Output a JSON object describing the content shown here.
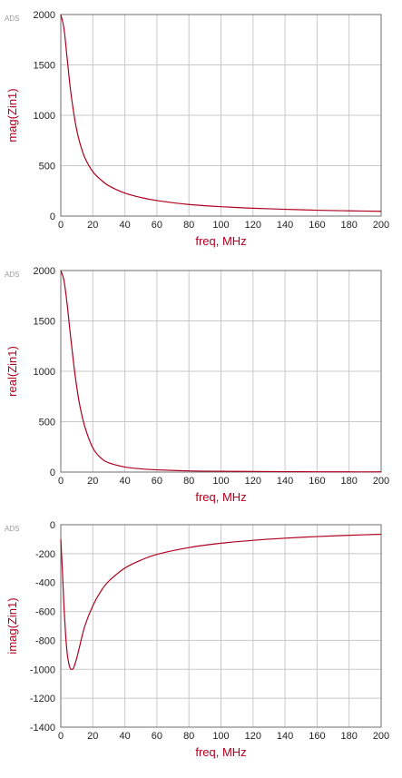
{
  "chart_data": [
    {
      "type": "line",
      "watermark": "ADS",
      "xlabel": "freq, MHz",
      "ylabel": "mag(Zin1)",
      "xlim": [
        0,
        200
      ],
      "ylim": [
        0,
        2000
      ],
      "xticks": [
        0,
        20,
        40,
        60,
        80,
        100,
        120,
        140,
        160,
        180,
        200
      ],
      "yticks": [
        0,
        500,
        1000,
        1500,
        2000
      ],
      "grid": true,
      "series": [
        {
          "color": "#b0001e",
          "x": [
            0,
            2,
            4,
            6,
            8,
            10,
            12,
            15,
            20,
            25,
            30,
            40,
            50,
            60,
            80,
            100,
            120,
            140,
            160,
            180,
            200
          ],
          "y": [
            2000,
            1860,
            1560,
            1260,
            1030,
            850,
            720,
            580,
            440,
            360,
            300,
            228,
            184,
            154,
            115,
            93,
            78,
            67,
            58,
            52,
            47
          ]
        }
      ]
    },
    {
      "type": "line",
      "watermark": "ADS",
      "xlabel": "freq, MHz",
      "ylabel": "real(Zin1)",
      "xlim": [
        0,
        200
      ],
      "ylim": [
        0,
        2000
      ],
      "xticks": [
        0,
        20,
        40,
        60,
        80,
        100,
        120,
        140,
        160,
        180,
        200
      ],
      "yticks": [
        0,
        500,
        1000,
        1500,
        2000
      ],
      "grid": true,
      "series": [
        {
          "color": "#b0001e",
          "x": [
            0,
            2,
            4,
            6,
            8,
            10,
            12,
            15,
            20,
            25,
            30,
            40,
            50,
            60,
            80,
            100,
            120,
            140,
            160,
            180,
            200
          ],
          "y": [
            2000,
            1900,
            1660,
            1360,
            1080,
            840,
            650,
            450,
            240,
            140,
            92,
            50,
            32,
            22,
            12,
            8,
            6,
            4,
            3,
            2,
            2
          ]
        }
      ]
    },
    {
      "type": "line",
      "watermark": "ADS",
      "xlabel": "freq, MHz",
      "ylabel": "imag(Zin1)",
      "xlim": [
        0,
        200
      ],
      "ylim": [
        -1400,
        0
      ],
      "xticks": [
        0,
        20,
        40,
        60,
        80,
        100,
        120,
        140,
        160,
        180,
        200
      ],
      "yticks": [
        -1400,
        -1200,
        -1000,
        -800,
        -600,
        -400,
        -200,
        0
      ],
      "grid": true,
      "series": [
        {
          "color": "#b0001e",
          "x": [
            0,
            1,
            2,
            3,
            4,
            5,
            6,
            7,
            8,
            10,
            12,
            15,
            20,
            25,
            30,
            40,
            50,
            60,
            80,
            100,
            120,
            140,
            160,
            180,
            200
          ],
          "y": [
            -100,
            -320,
            -570,
            -760,
            -890,
            -960,
            -995,
            -1000,
            -990,
            -920,
            -830,
            -700,
            -560,
            -460,
            -390,
            -300,
            -245,
            -205,
            -158,
            -128,
            -108,
            -93,
            -82,
            -73,
            -66
          ]
        }
      ]
    }
  ]
}
